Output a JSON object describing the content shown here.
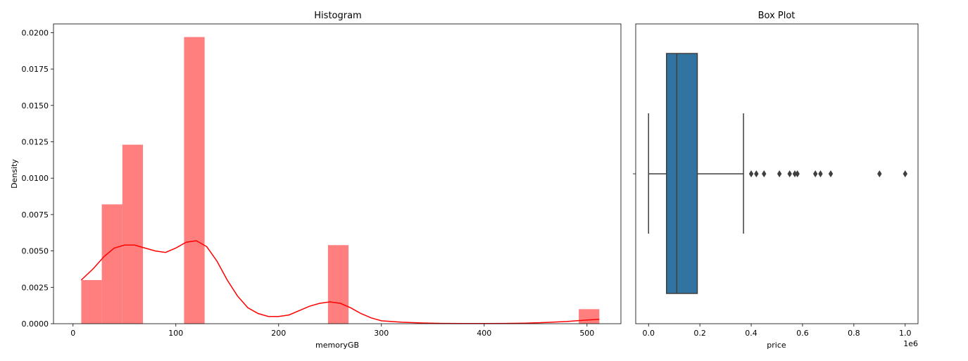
{
  "chart_data": [
    {
      "type": "histogram",
      "title": "Histogram",
      "xlabel": "memoryGB",
      "ylabel": "Density",
      "xlim": [
        -19,
        533
      ],
      "ylim": [
        0,
        0.0206
      ],
      "xticks": [
        0,
        100,
        200,
        300,
        400,
        500
      ],
      "yticks": [
        "0.0000",
        "0.0025",
        "0.0050",
        "0.0075",
        "0.0100",
        "0.0125",
        "0.0150",
        "0.0175",
        "0.0200"
      ],
      "grid": false,
      "bar_color": "#ff7f7f",
      "kde_color": "#ff0000",
      "bins": [
        {
          "x0": 8,
          "x1": 28,
          "density": 0.003
        },
        {
          "x0": 28,
          "x1": 48,
          "density": 0.0082
        },
        {
          "x0": 48,
          "x1": 68,
          "density": 0.0123
        },
        {
          "x0": 108,
          "x1": 128,
          "density": 0.0197
        },
        {
          "x0": 248,
          "x1": 268,
          "density": 0.0054
        },
        {
          "x0": 492,
          "x1": 512,
          "density": 0.001
        }
      ],
      "kde": {
        "x": [
          8,
          20,
          30,
          40,
          50,
          60,
          70,
          80,
          90,
          100,
          110,
          120,
          130,
          140,
          150,
          160,
          170,
          180,
          190,
          200,
          210,
          220,
          230,
          240,
          250,
          260,
          270,
          280,
          290,
          300,
          320,
          340,
          360,
          380,
          400,
          420,
          440,
          460,
          480,
          500,
          512
        ],
        "y": [
          0.003,
          0.0038,
          0.0046,
          0.0052,
          0.0054,
          0.0054,
          0.0052,
          0.005,
          0.0049,
          0.0052,
          0.0056,
          0.0057,
          0.0053,
          0.0043,
          0.003,
          0.0019,
          0.0011,
          0.0007,
          0.0005,
          0.0005,
          0.0006,
          0.0009,
          0.0012,
          0.0014,
          0.0015,
          0.0014,
          0.0011,
          0.0007,
          0.0004,
          0.0002,
          0.0001,
          5e-05,
          2e-05,
          1e-05,
          1e-05,
          2e-05,
          4e-05,
          8e-05,
          0.00015,
          0.00025,
          0.0003
        ]
      }
    },
    {
      "type": "box",
      "title": "Box Plot",
      "xlabel": "price",
      "offset_label": "1e6",
      "xlim": [
        -0.05,
        1.05
      ],
      "xticks": [
        "0.0",
        "0.2",
        "0.4",
        "0.6",
        "0.8",
        "1.0"
      ],
      "grid": false,
      "box_color": "#3274a1",
      "edge_color": "#3f3f3f",
      "whisker_low": 0.0,
      "q1": 0.07,
      "median": 0.11,
      "q3": 0.19,
      "whisker_high": 0.37,
      "outliers": [
        0.4,
        0.42,
        0.45,
        0.51,
        0.55,
        0.57,
        0.58,
        0.65,
        0.67,
        0.71,
        0.9,
        1.0
      ]
    }
  ]
}
